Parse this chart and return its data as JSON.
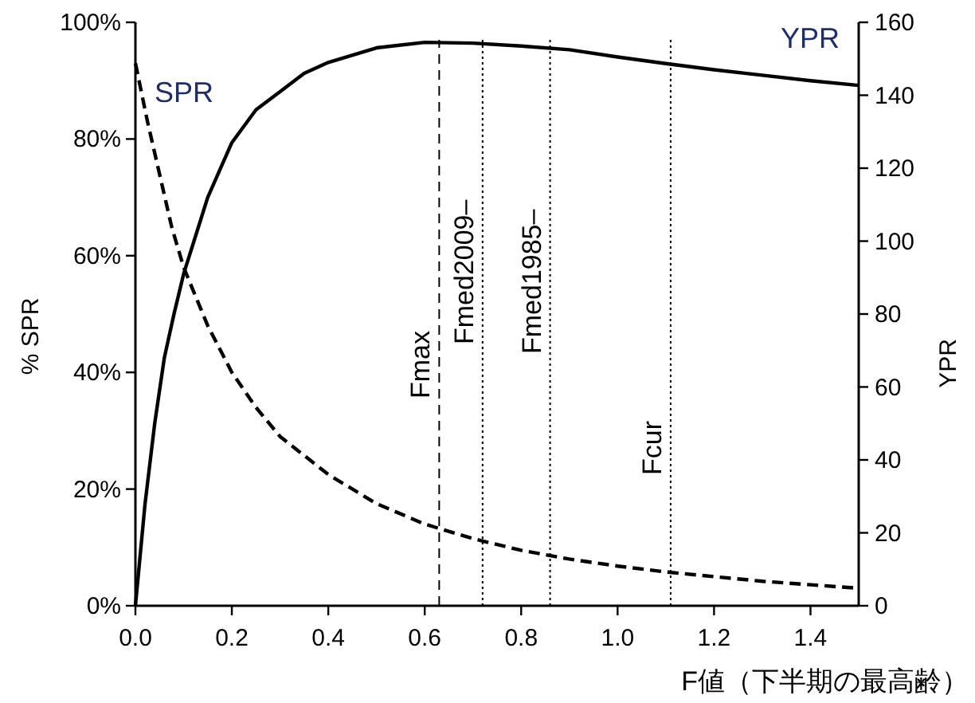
{
  "chart_data": {
    "type": "line",
    "xlabel": "F値（下半期の最高齢）",
    "ylabel": "% SPR",
    "y2label": "YPR",
    "grid": false,
    "xlim": [
      0,
      1.5
    ],
    "ylim": [
      0,
      100
    ],
    "y2lim": [
      0,
      160
    ],
    "xticks": [
      {
        "value": 0,
        "label": "0.0"
      },
      {
        "value": 0.2,
        "label": "0.2"
      },
      {
        "value": 0.4,
        "label": "0.4"
      },
      {
        "value": 0.6,
        "label": "0.6"
      },
      {
        "value": 0.8,
        "label": "0.8"
      },
      {
        "value": 1,
        "label": "1.0"
      },
      {
        "value": 1.2,
        "label": "1.2"
      },
      {
        "value": 1.4,
        "label": "1.4"
      }
    ],
    "yticks": [
      {
        "value": 0,
        "label": "0%"
      },
      {
        "value": 20,
        "label": "20%"
      },
      {
        "value": 40,
        "label": "40%"
      },
      {
        "value": 60,
        "label": "60%"
      },
      {
        "value": 80,
        "label": "80%"
      },
      {
        "value": 100,
        "label": "100%"
      }
    ],
    "y2ticks": [
      0,
      20,
      40,
      60,
      80,
      100,
      120,
      140,
      160
    ],
    "series": [
      {
        "name": "SPR",
        "color": "#000000",
        "line_style": "dashed",
        "x": [
          0,
          0.025,
          0.05,
          0.075,
          0.1,
          0.15,
          0.2,
          0.25,
          0.3,
          0.4,
          0.5,
          0.6,
          0.7,
          0.8,
          0.9,
          1.0,
          1.1,
          1.2,
          1.3,
          1.4,
          1.5
        ],
        "values": [
          93,
          83,
          74,
          65,
          58,
          48,
          40,
          34,
          29,
          22.5,
          17.5,
          14,
          11.5,
          9.5,
          8,
          6.8,
          5.8,
          5,
          4.2,
          3.6,
          3
        ]
      },
      {
        "name": "YPR",
        "axis": "y2",
        "color": "#000000",
        "line_style": "solid",
        "x": [
          0,
          0.02,
          0.04,
          0.06,
          0.08,
          0.1,
          0.15,
          0.2,
          0.25,
          0.3,
          0.35,
          0.4,
          0.5,
          0.6,
          0.7,
          0.8,
          0.9,
          1.0,
          1.1,
          1.2,
          1.3,
          1.4,
          1.5
        ],
        "values": [
          0,
          28,
          50,
          68,
          80,
          91,
          112,
          127,
          136,
          141,
          146,
          149,
          153,
          154.5,
          154.3,
          153.5,
          152.5,
          150.5,
          148.7,
          147,
          145.5,
          144,
          142.7
        ]
      }
    ],
    "ref_lines": [
      {
        "axis": "x",
        "value": 0.63,
        "label": "Fmax",
        "line_style": "dashed"
      },
      {
        "axis": "x",
        "value": 0.72,
        "label": "Fmed2009‒",
        "line_style": "dotted"
      },
      {
        "axis": "x",
        "value": 0.86,
        "label": "Fmed1985‒",
        "line_style": "dotted"
      },
      {
        "axis": "x",
        "value": 1.11,
        "label": "Fcur",
        "line_style": "dotted"
      }
    ]
  }
}
